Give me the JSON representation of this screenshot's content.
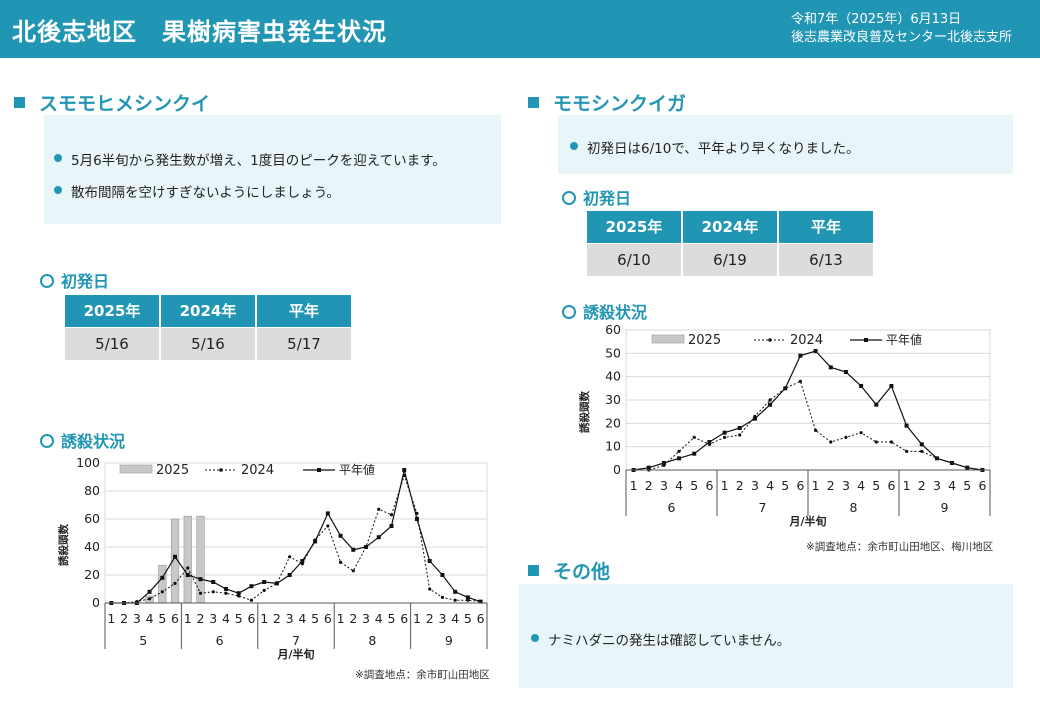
{
  "header": {
    "title": "北後志地区　果樹病害虫発生状況",
    "date_line1": "令和7年（2025年）6月13日",
    "date_line2": "後志農業改良普及センター北後志支所"
  },
  "left": {
    "heading": "スモモヒメシンクイ",
    "bullets": [
      "5月6半旬から発生数が増え、1度目のピークを迎えています。",
      "散布間隔を空けすぎないようにしましょう。"
    ],
    "first_day_heading": "初発日",
    "first_day_headers": [
      "2025年",
      "2024年",
      "平年"
    ],
    "first_day_values": [
      "5/16",
      "5/16",
      "5/17"
    ],
    "trap_heading": "誘殺状況",
    "note": "※調査地点：余市町山田地区"
  },
  "right": {
    "heading": "モモシンクイガ",
    "bullets": [
      "初発日は6/10で、平年より早くなりました。"
    ],
    "first_day_heading": "初発日",
    "first_day_headers": [
      "2025年",
      "2024年",
      "平年"
    ],
    "first_day_values": [
      "6/10",
      "6/19",
      "6/13"
    ],
    "trap_heading": "誘殺状況",
    "note": "※調査地点：余市町山田地区、梅川地区"
  },
  "other": {
    "heading": "その他",
    "bullets": [
      "ナミハダニの発生は確認していません。"
    ]
  },
  "colors": {
    "accent": "#2196b4",
    "box_bg": "#e8f6f9",
    "cell_bg": "#dcdcdc",
    "bar": "#c8c8c8"
  },
  "chart_data": [
    {
      "type": "bar",
      "ylabel": "誘殺頭数",
      "xlabel": "月/半旬",
      "ylim": [
        0,
        100
      ],
      "yticks": [
        0,
        20,
        40,
        60,
        80,
        100
      ],
      "legend_position": "top",
      "sub_labels": [
        "1",
        "2",
        "3",
        "4",
        "5",
        "6",
        "1",
        "2",
        "3",
        "4",
        "5",
        "6",
        "1",
        "2",
        "3",
        "4",
        "5",
        "6",
        "1",
        "2",
        "3",
        "4",
        "5",
        "6",
        "1",
        "2",
        "3",
        "4",
        "5",
        "6"
      ],
      "months": [
        "5",
        "6",
        "7",
        "8",
        "9"
      ],
      "series": [
        {
          "name": "2025",
          "kind": "bar",
          "values": [
            0,
            0,
            0,
            5,
            27,
            60,
            62,
            62,
            null,
            null,
            null,
            null,
            null,
            null,
            null,
            null,
            null,
            null,
            null,
            null,
            null,
            null,
            null,
            null,
            null,
            null,
            null,
            null,
            null,
            null
          ]
        },
        {
          "name": "2024",
          "kind": "dotted-line",
          "values": [
            0,
            0,
            1,
            3,
            8,
            14,
            25,
            7,
            8,
            7,
            5,
            2,
            9,
            14,
            33,
            28,
            45,
            55,
            29,
            23,
            40,
            67,
            63,
            91,
            64,
            10,
            4,
            2,
            2,
            1
          ]
        },
        {
          "name": "平年値",
          "kind": "solid-line",
          "values": [
            0,
            0,
            0,
            8,
            18,
            33,
            20,
            17,
            15,
            10,
            7,
            12,
            15,
            14,
            20,
            30,
            44,
            64,
            48,
            38,
            40,
            47,
            55,
            95,
            60,
            30,
            20,
            8,
            4,
            1
          ]
        }
      ]
    },
    {
      "type": "bar",
      "ylabel": "誘殺頭数",
      "xlabel": "月/半旬",
      "ylim": [
        0,
        60
      ],
      "yticks": [
        0,
        10,
        20,
        30,
        40,
        50,
        60
      ],
      "legend_position": "top",
      "sub_labels": [
        "1",
        "2",
        "3",
        "4",
        "5",
        "6",
        "1",
        "2",
        "3",
        "4",
        "5",
        "6",
        "1",
        "2",
        "3",
        "4",
        "5",
        "6",
        "1",
        "2",
        "3",
        "4",
        "5",
        "6"
      ],
      "months": [
        "6",
        "7",
        "8",
        "9"
      ],
      "series": [
        {
          "name": "2025",
          "kind": "bar",
          "values": [
            0,
            0,
            0,
            0,
            0,
            0,
            0,
            0,
            0,
            0,
            0,
            0,
            0,
            0,
            0,
            0,
            0,
            0,
            0,
            0,
            0,
            0,
            0,
            0
          ]
        },
        {
          "name": "2024",
          "kind": "dotted-line",
          "values": [
            0,
            0,
            2,
            8,
            14,
            11,
            14,
            15,
            23,
            30,
            35,
            38,
            17,
            12,
            14,
            16,
            12,
            12,
            8,
            8,
            5,
            3,
            1,
            0
          ]
        },
        {
          "name": "平年値",
          "kind": "solid-line",
          "values": [
            0,
            1,
            3,
            5,
            7,
            12,
            16,
            18,
            22,
            28,
            35,
            49,
            51,
            44,
            42,
            36,
            28,
            36,
            19,
            11,
            5,
            3,
            1,
            0
          ]
        }
      ]
    }
  ]
}
